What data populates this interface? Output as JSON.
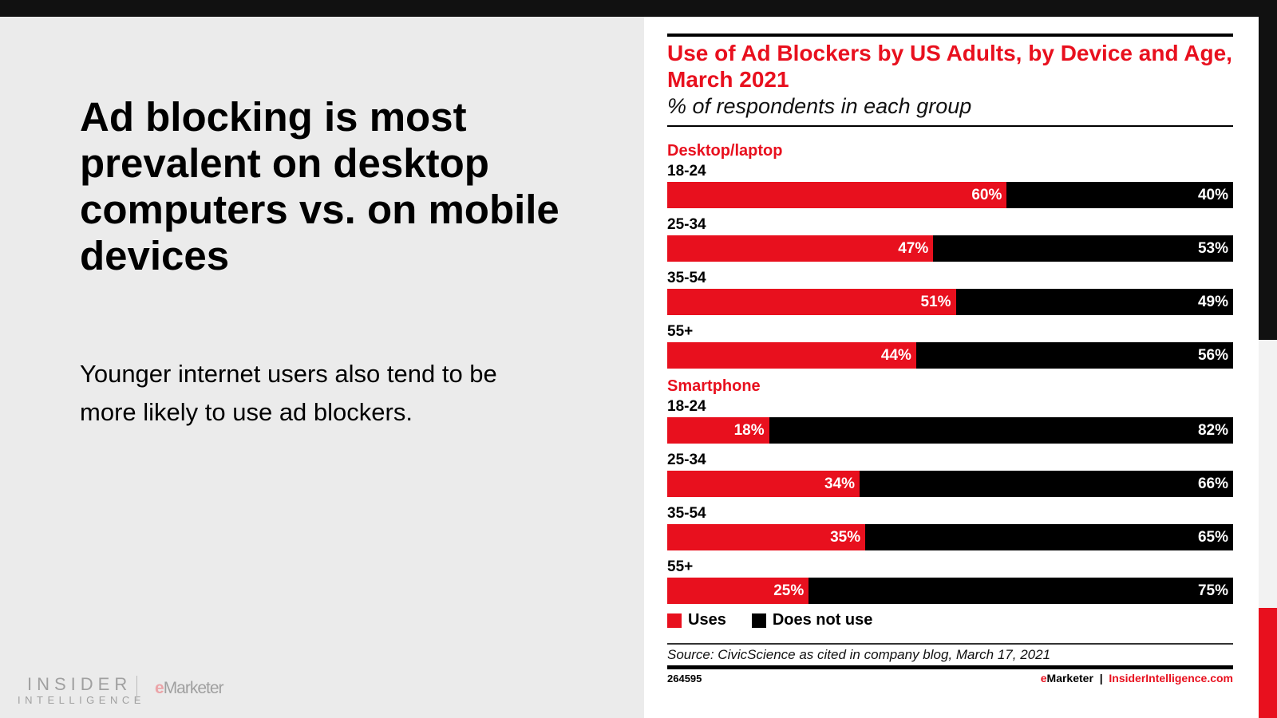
{
  "slide": {
    "headline": "Ad blocking is most prevalent on desktop computers vs. on mobile devices",
    "subtext": "Younger internet users also tend to be more likely to use ad blockers.",
    "logo": {
      "insider": "INSIDER",
      "intelligence": "INTELLIGENCE",
      "emarketer_e": "e",
      "emarketer_rest": "Marketer"
    }
  },
  "colors": {
    "uses": "#e8101e",
    "does_not_use": "#000000"
  },
  "chart_data": {
    "type": "bar",
    "orientation": "horizontal",
    "stacked": true,
    "percent_stacked": true,
    "title": "Use of Ad Blockers by US Adults, by Device and Age, March 2021",
    "subtitle": "% of respondents in each group",
    "groups": [
      {
        "name": "Desktop/laptop",
        "categories": [
          "18-24",
          "25-34",
          "35-54",
          "55+"
        ],
        "uses": [
          60,
          47,
          51,
          44
        ],
        "does_not_use": [
          40,
          53,
          49,
          56
        ]
      },
      {
        "name": "Smartphone",
        "categories": [
          "18-24",
          "25-34",
          "35-54",
          "55+"
        ],
        "uses": [
          18,
          34,
          35,
          25
        ],
        "does_not_use": [
          82,
          66,
          65,
          75
        ]
      }
    ],
    "legend": [
      "Uses",
      "Does not use"
    ],
    "legend_position": "bottom-left",
    "source": "Source: CivicScience as cited in company blog, March 17, 2021",
    "chart_id": "264595",
    "credit": {
      "emarketer_e": "e",
      "emarketer_rest": "Marketer",
      "separator": "|",
      "site": "InsiderIntelligence.com"
    }
  }
}
